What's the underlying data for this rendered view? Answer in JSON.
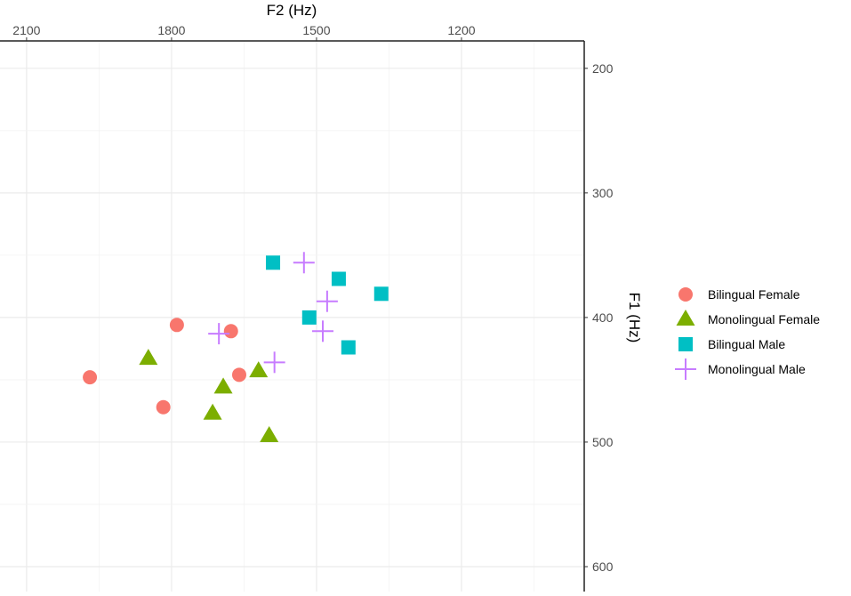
{
  "chart_data": {
    "type": "scatter",
    "title": "",
    "xlabel": "F2 (Hz)",
    "ylabel": "F1 (Hz)",
    "x_axis_position": "top",
    "y_axis_position": "right",
    "x_reversed": true,
    "y_reversed": true,
    "xlim": [
      2155,
      946
    ],
    "ylim": [
      178,
      620
    ],
    "x_ticks": [
      2100,
      1800,
      1500,
      1200
    ],
    "x_tick_labels": [
      "2100",
      "1800",
      "1500",
      "1200"
    ],
    "y_ticks": [
      200,
      300,
      400,
      500,
      600
    ],
    "y_tick_labels": [
      "200",
      "300",
      "400",
      "500",
      "600"
    ],
    "grid": true,
    "legend_position": "right",
    "series": [
      {
        "name": "Bilingual Female",
        "shape": "circle",
        "color": "#F8766D",
        "points": [
          [
            1969,
            448
          ],
          [
            1789,
            406
          ],
          [
            1677,
            411
          ],
          [
            1660,
            446
          ],
          [
            1817,
            472
          ]
        ]
      },
      {
        "name": "Monolingual Female",
        "shape": "triangle",
        "color": "#7CAE00",
        "points": [
          [
            1848,
            433
          ],
          [
            1693,
            456
          ],
          [
            1620,
            443
          ],
          [
            1715,
            477
          ],
          [
            1598,
            495
          ]
        ]
      },
      {
        "name": "Bilingual Male",
        "shape": "square",
        "color": "#00BFC4",
        "points": [
          [
            1590,
            356
          ],
          [
            1454,
            369
          ],
          [
            1366,
            381
          ],
          [
            1515,
            400
          ],
          [
            1434,
            424
          ]
        ]
      },
      {
        "name": "Monolingual Male",
        "shape": "plus",
        "color": "#C77CFF",
        "points": [
          [
            1526,
            356
          ],
          [
            1478,
            387
          ],
          [
            1487,
            411
          ],
          [
            1702,
            413
          ],
          [
            1587,
            436
          ]
        ]
      }
    ]
  }
}
